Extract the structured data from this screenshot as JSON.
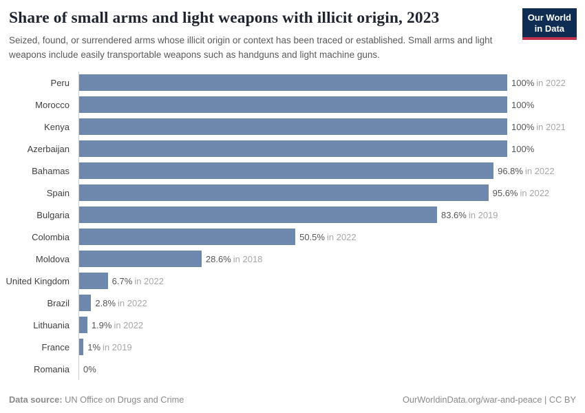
{
  "header": {
    "title": "Share of small arms and light weapons with illicit origin, 2023",
    "subtitle": "Seized, found, or surrendered arms whose illicit origin or context has been traced or established. Small arms and light weapons include easily transportable weapons such as handguns and light machine guns.",
    "logo": {
      "line1": "Our World",
      "line2": "in Data"
    }
  },
  "chart_data": {
    "type": "bar",
    "orientation": "horizontal",
    "unit": "%",
    "xlim": [
      0,
      100
    ],
    "grid": false,
    "legend": "none",
    "categories": [
      "Peru",
      "Morocco",
      "Kenya",
      "Azerbaijan",
      "Bahamas",
      "Spain",
      "Bulgaria",
      "Colombia",
      "Moldova",
      "United Kingdom",
      "Brazil",
      "Lithuania",
      "France",
      "Romania"
    ],
    "values": [
      100,
      100,
      100,
      100,
      96.8,
      95.6,
      83.6,
      50.5,
      28.6,
      6.7,
      2.8,
      1.9,
      1,
      0
    ],
    "value_labels": [
      "100%",
      "100%",
      "100%",
      "100%",
      "96.8%",
      "95.6%",
      "83.6%",
      "50.5%",
      "28.6%",
      "6.7%",
      "2.8%",
      "1.9%",
      "1%",
      "0%"
    ],
    "year_notes": [
      "in 2022",
      "",
      "in 2021",
      "",
      "in 2022",
      "in 2022",
      "in 2019",
      "in 2022",
      "in 2018",
      "in 2022",
      "in 2022",
      "in 2022",
      "in 2019",
      ""
    ],
    "title": "Share of small arms and light weapons with illicit origin, 2023",
    "xlabel": "",
    "ylabel": ""
  },
  "footer": {
    "source_label": "Data source:",
    "source_value": " UN Office on Drugs and Crime",
    "url": "OurWorldinData.org/war-and-peace",
    "license": " | CC BY"
  },
  "colors": {
    "bar": "#6d87ad",
    "axis": "#cfcfcf",
    "title_text": "#1f2430",
    "subtitle_text": "#5a5a5a",
    "entity_label": "#404040",
    "value_text": "#565656",
    "year_text": "#a7a7a7",
    "footer_text": "#8a8a8a",
    "logo_bg": "#0f2d52",
    "logo_stripe": "#c2334d",
    "logo_text": "#ffffff"
  }
}
